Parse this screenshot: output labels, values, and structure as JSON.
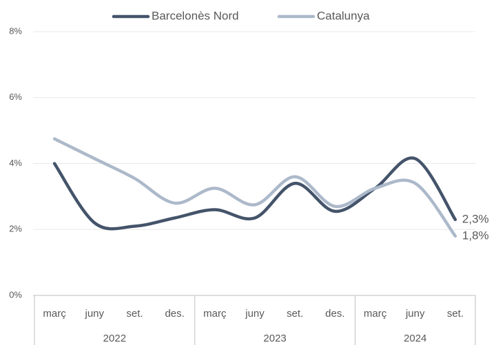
{
  "chart_data": {
    "type": "line",
    "categories": [
      "març",
      "juny",
      "set.",
      "des.",
      "març",
      "juny",
      "set.",
      "des.",
      "març",
      "juny",
      "set."
    ],
    "x_groups": [
      "2022",
      "2023",
      "2024"
    ],
    "group_sizes": [
      4,
      4,
      3
    ],
    "series": [
      {
        "name": "Barcelonès Nord",
        "color": "#44546a",
        "values": [
          4.0,
          2.2,
          2.1,
          2.35,
          2.6,
          2.35,
          3.4,
          2.55,
          3.25,
          4.15,
          2.3
        ],
        "value_labels": [
          null,
          null,
          null,
          null,
          null,
          null,
          null,
          null,
          null,
          null,
          "2,3%"
        ]
      },
      {
        "name": "Catalunya",
        "color": "#acb9ca",
        "values": [
          4.75,
          4.15,
          3.55,
          2.8,
          3.25,
          2.75,
          3.6,
          2.7,
          3.25,
          3.4,
          1.8
        ],
        "value_labels": [
          null,
          null,
          null,
          null,
          null,
          null,
          null,
          null,
          null,
          null,
          "1,8%"
        ]
      }
    ],
    "ylim": [
      0,
      8
    ],
    "yticks": [
      {
        "value": 0,
        "label": "0%"
      },
      {
        "value": 2,
        "label": "2%"
      },
      {
        "value": 4,
        "label": "4%"
      },
      {
        "value": 6,
        "label": "6%"
      },
      {
        "value": 8,
        "label": "8%"
      }
    ],
    "grid": true,
    "legend": "top"
  }
}
